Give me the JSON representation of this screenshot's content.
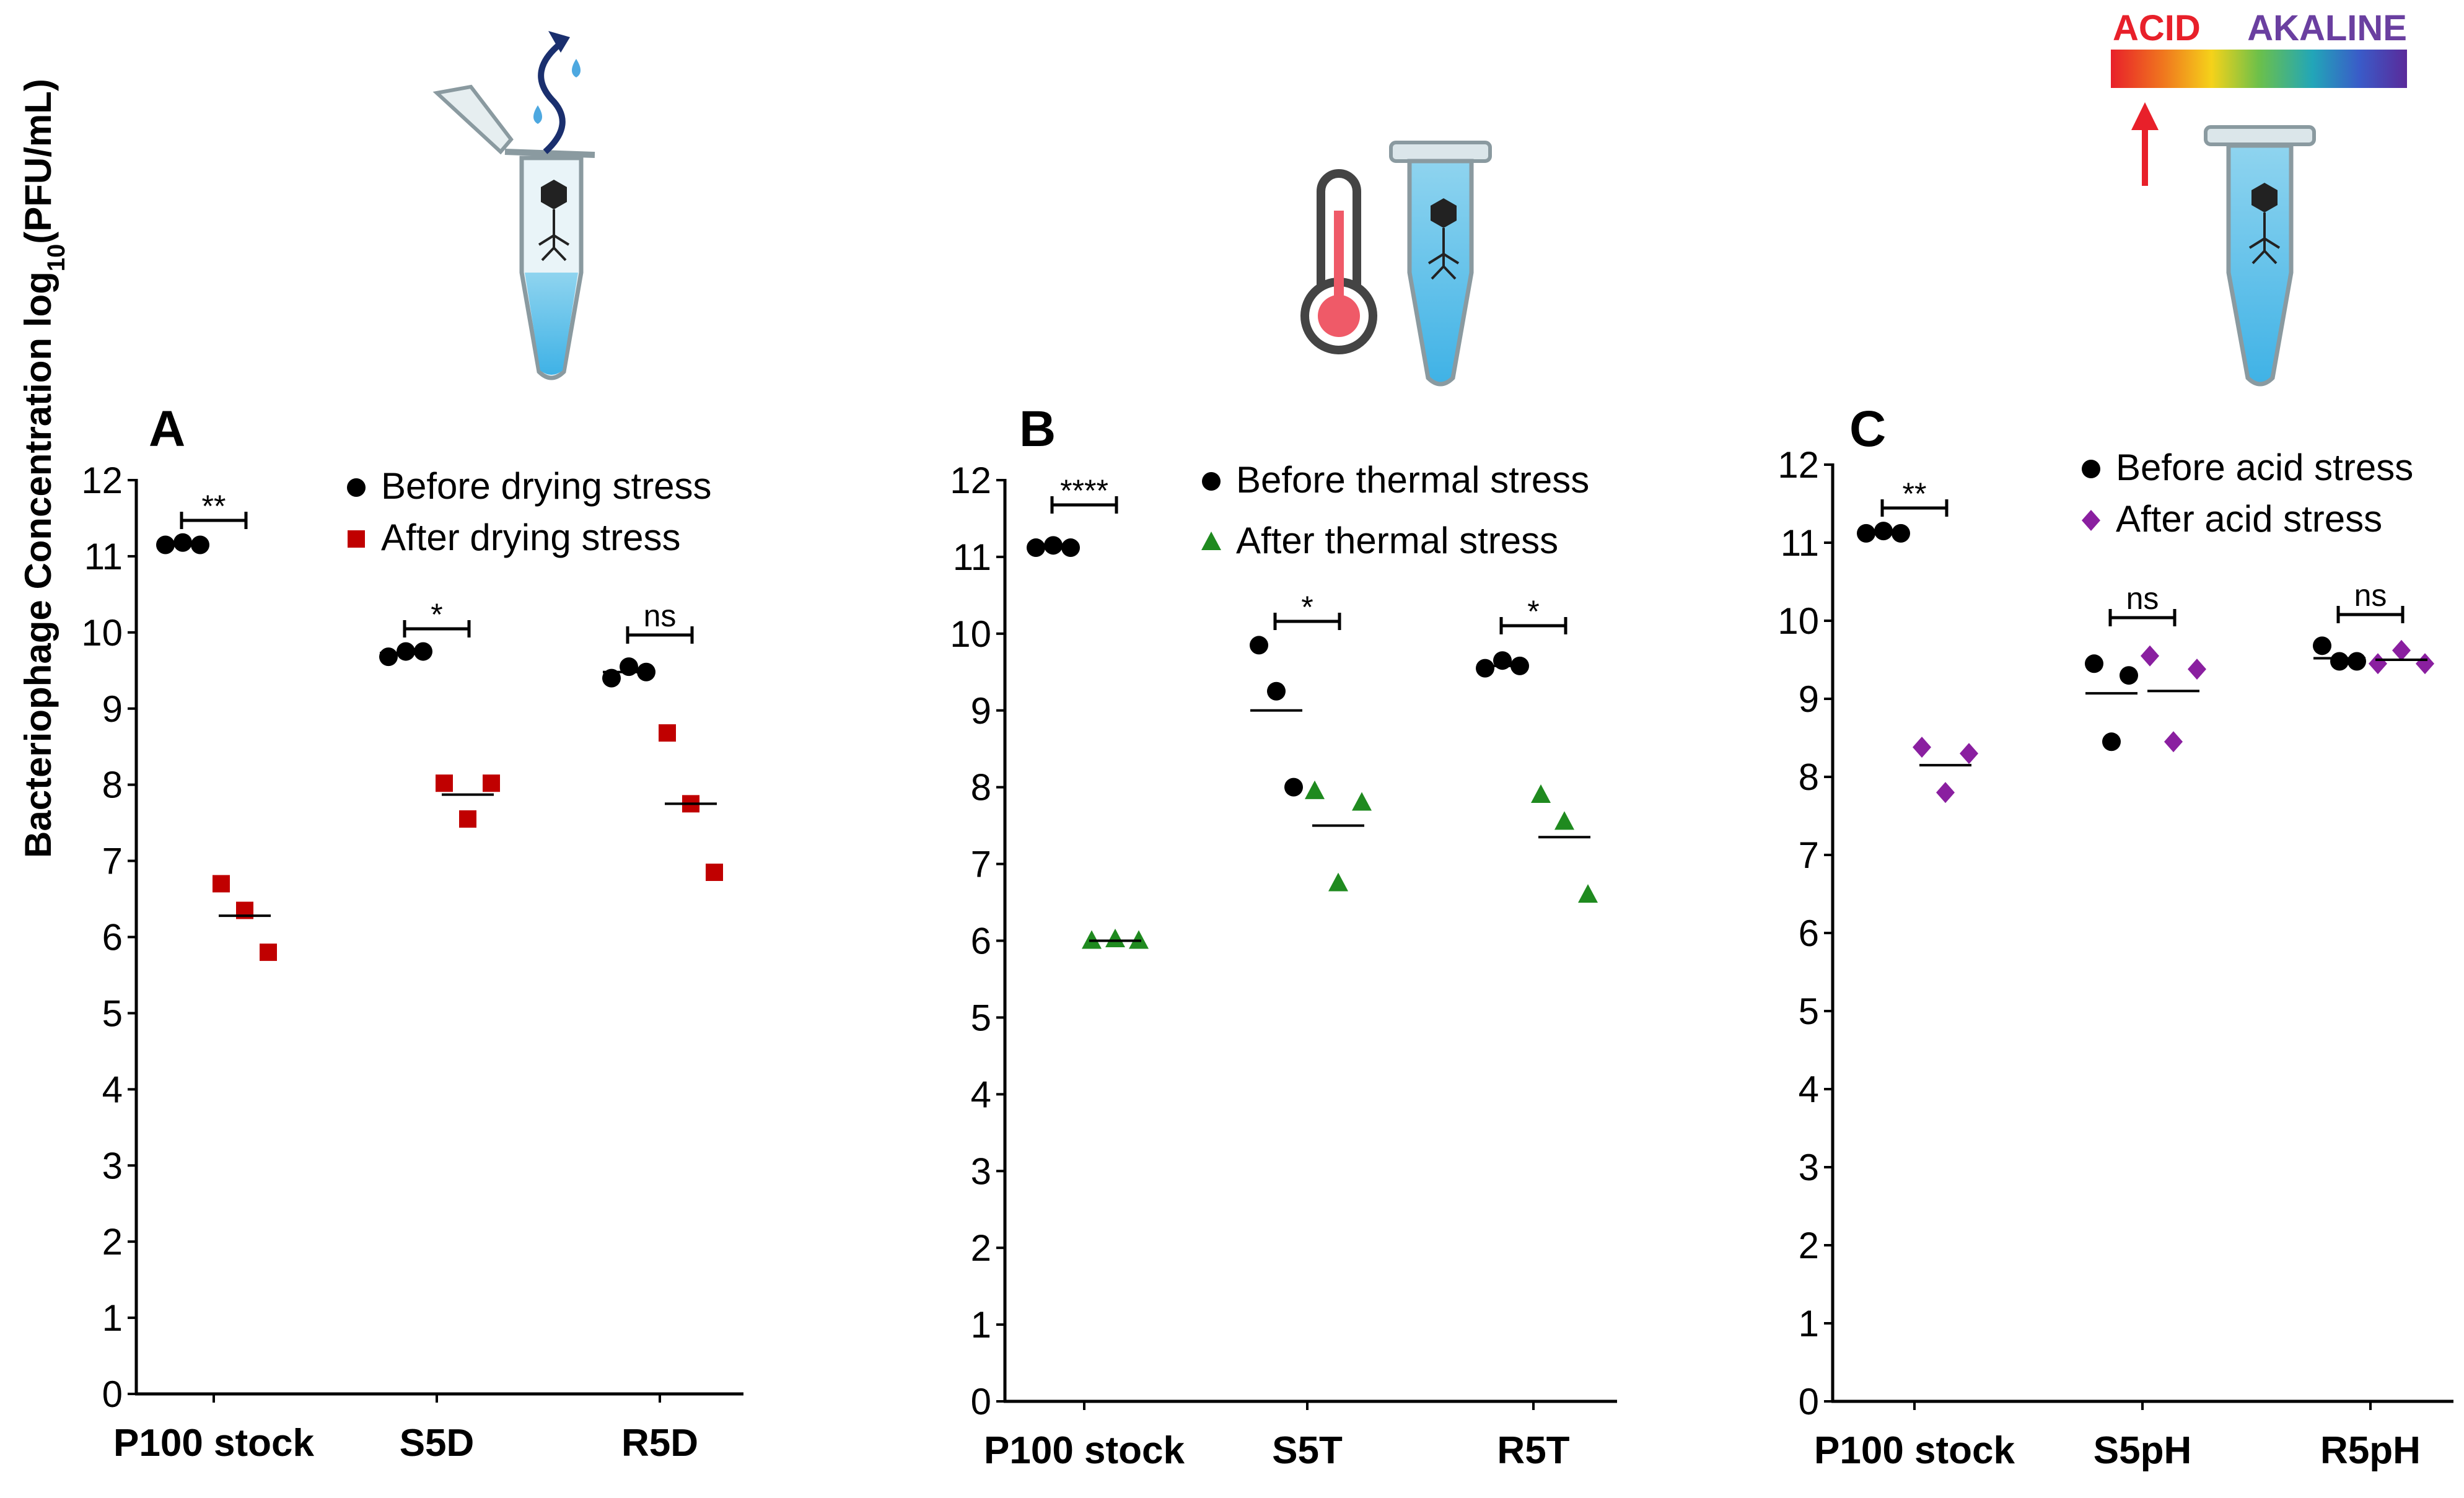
{
  "figure": {
    "ylabel": "Bacteriophage Concentration log",
    "ylabel_sub": "10",
    "ylabel_unit": "(PFU/mL)",
    "ph_scale": {
      "acid": "ACID",
      "alkaline": "AKALINE",
      "acid_color": "#e8202a",
      "alkaline_color": "#6a3fa0"
    }
  },
  "chart_data": [
    {
      "type": "scatter",
      "panel": "A",
      "ylim": [
        0,
        12
      ],
      "yticks": [
        "0",
        "1",
        "2",
        "3",
        "4",
        "5",
        "6",
        "7",
        "8",
        "9",
        "10",
        "11",
        "12"
      ],
      "categories": [
        "P100 stock",
        "S5D",
        "R5D"
      ],
      "series": [
        {
          "name": "Before drying stress",
          "marker": "circle",
          "color": "#000000",
          "values": [
            [
              11.15,
              11.18,
              11.15
            ],
            [
              9.68,
              9.75,
              9.75
            ],
            [
              9.4,
              9.55,
              9.48
            ]
          ],
          "means": [
            11.15,
            9.73,
            9.48
          ]
        },
        {
          "name": "After drying stress",
          "marker": "square",
          "color": "#c00000",
          "values": [
            [
              6.7,
              6.35,
              5.8
            ],
            [
              8.02,
              7.55,
              8.02
            ],
            [
              8.68,
              7.75,
              6.85
            ]
          ],
          "means": [
            6.28,
            7.87,
            7.75
          ]
        }
      ],
      "significance": [
        "**",
        "*",
        "ns"
      ]
    },
    {
      "type": "scatter",
      "panel": "B",
      "ylim": [
        0,
        12
      ],
      "yticks": [
        "0",
        "1",
        "2",
        "3",
        "4",
        "5",
        "6",
        "7",
        "8",
        "9",
        "10",
        "11",
        "12"
      ],
      "categories": [
        "P100 stock",
        "S5T",
        "R5T"
      ],
      "series": [
        {
          "name": "Before thermal stress",
          "marker": "circle",
          "color": "#000000",
          "values": [
            [
              11.12,
              11.15,
              11.12
            ],
            [
              9.85,
              9.25,
              8.0
            ],
            [
              9.55,
              9.65,
              9.58
            ]
          ],
          "means": [
            11.13,
            9.0,
            9.58
          ]
        },
        {
          "name": "After thermal stress",
          "marker": "triangle",
          "color": "#1f8a1f",
          "values": [
            [
              6.0,
              6.02,
              6.0
            ],
            [
              7.95,
              6.75,
              7.8
            ],
            [
              7.9,
              7.55,
              6.6
            ]
          ],
          "means": [
            6.0,
            7.5,
            7.35
          ]
        }
      ],
      "significance": [
        "****",
        "*",
        "*"
      ]
    },
    {
      "type": "scatter",
      "panel": "C",
      "ylim": [
        0,
        12
      ],
      "yticks": [
        "0",
        "1",
        "2",
        "3",
        "4",
        "5",
        "6",
        "7",
        "8",
        "9",
        "10",
        "11",
        "12"
      ],
      "categories": [
        "P100 stock",
        "S5pH",
        "R5pH"
      ],
      "series": [
        {
          "name": "Before acid stress",
          "marker": "circle",
          "color": "#000000",
          "values": [
            [
              11.12,
              11.15,
              11.12
            ],
            [
              9.45,
              8.45,
              9.3
            ],
            [
              9.68,
              9.48,
              9.48
            ]
          ],
          "means": [
            11.13,
            9.07,
            9.52
          ]
        },
        {
          "name": "After acid stress",
          "marker": "diamond",
          "color": "#8a1fa0",
          "values": [
            [
              8.38,
              7.8,
              8.3
            ],
            [
              9.55,
              8.45,
              9.38
            ],
            [
              9.45,
              9.62,
              9.45
            ]
          ],
          "means": [
            8.15,
            9.1,
            9.5
          ]
        }
      ],
      "significance": [
        "**",
        "ns",
        "ns"
      ]
    }
  ]
}
